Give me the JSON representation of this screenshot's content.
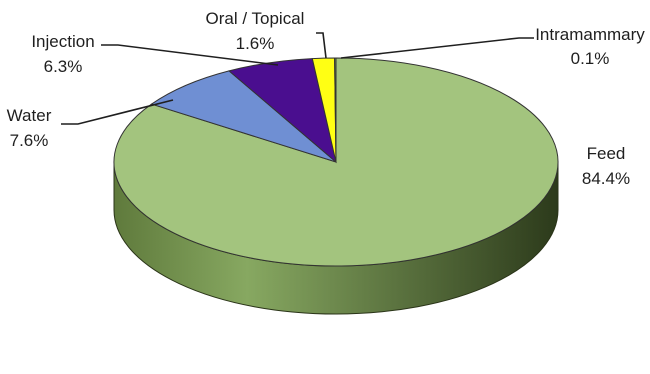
{
  "chart_data": {
    "type": "pie",
    "title": "",
    "legend": "none",
    "slices": [
      {
        "name": "Feed",
        "value": 84.4,
        "label": "84.4%",
        "color": "#a3c47e"
      },
      {
        "name": "Water",
        "value": 7.6,
        "label": "7.6%",
        "color": "#6f8fd3"
      },
      {
        "name": "Injection",
        "value": 6.3,
        "label": "6.3%",
        "color": "#4a0e8f"
      },
      {
        "name": "Oral / Topical",
        "value": 1.6,
        "label": "1.6%",
        "color": "#ffff14"
      },
      {
        "name": "Intramammary",
        "value": 0.1,
        "label": "0.1%",
        "color": "#7a9a55"
      }
    ]
  }
}
